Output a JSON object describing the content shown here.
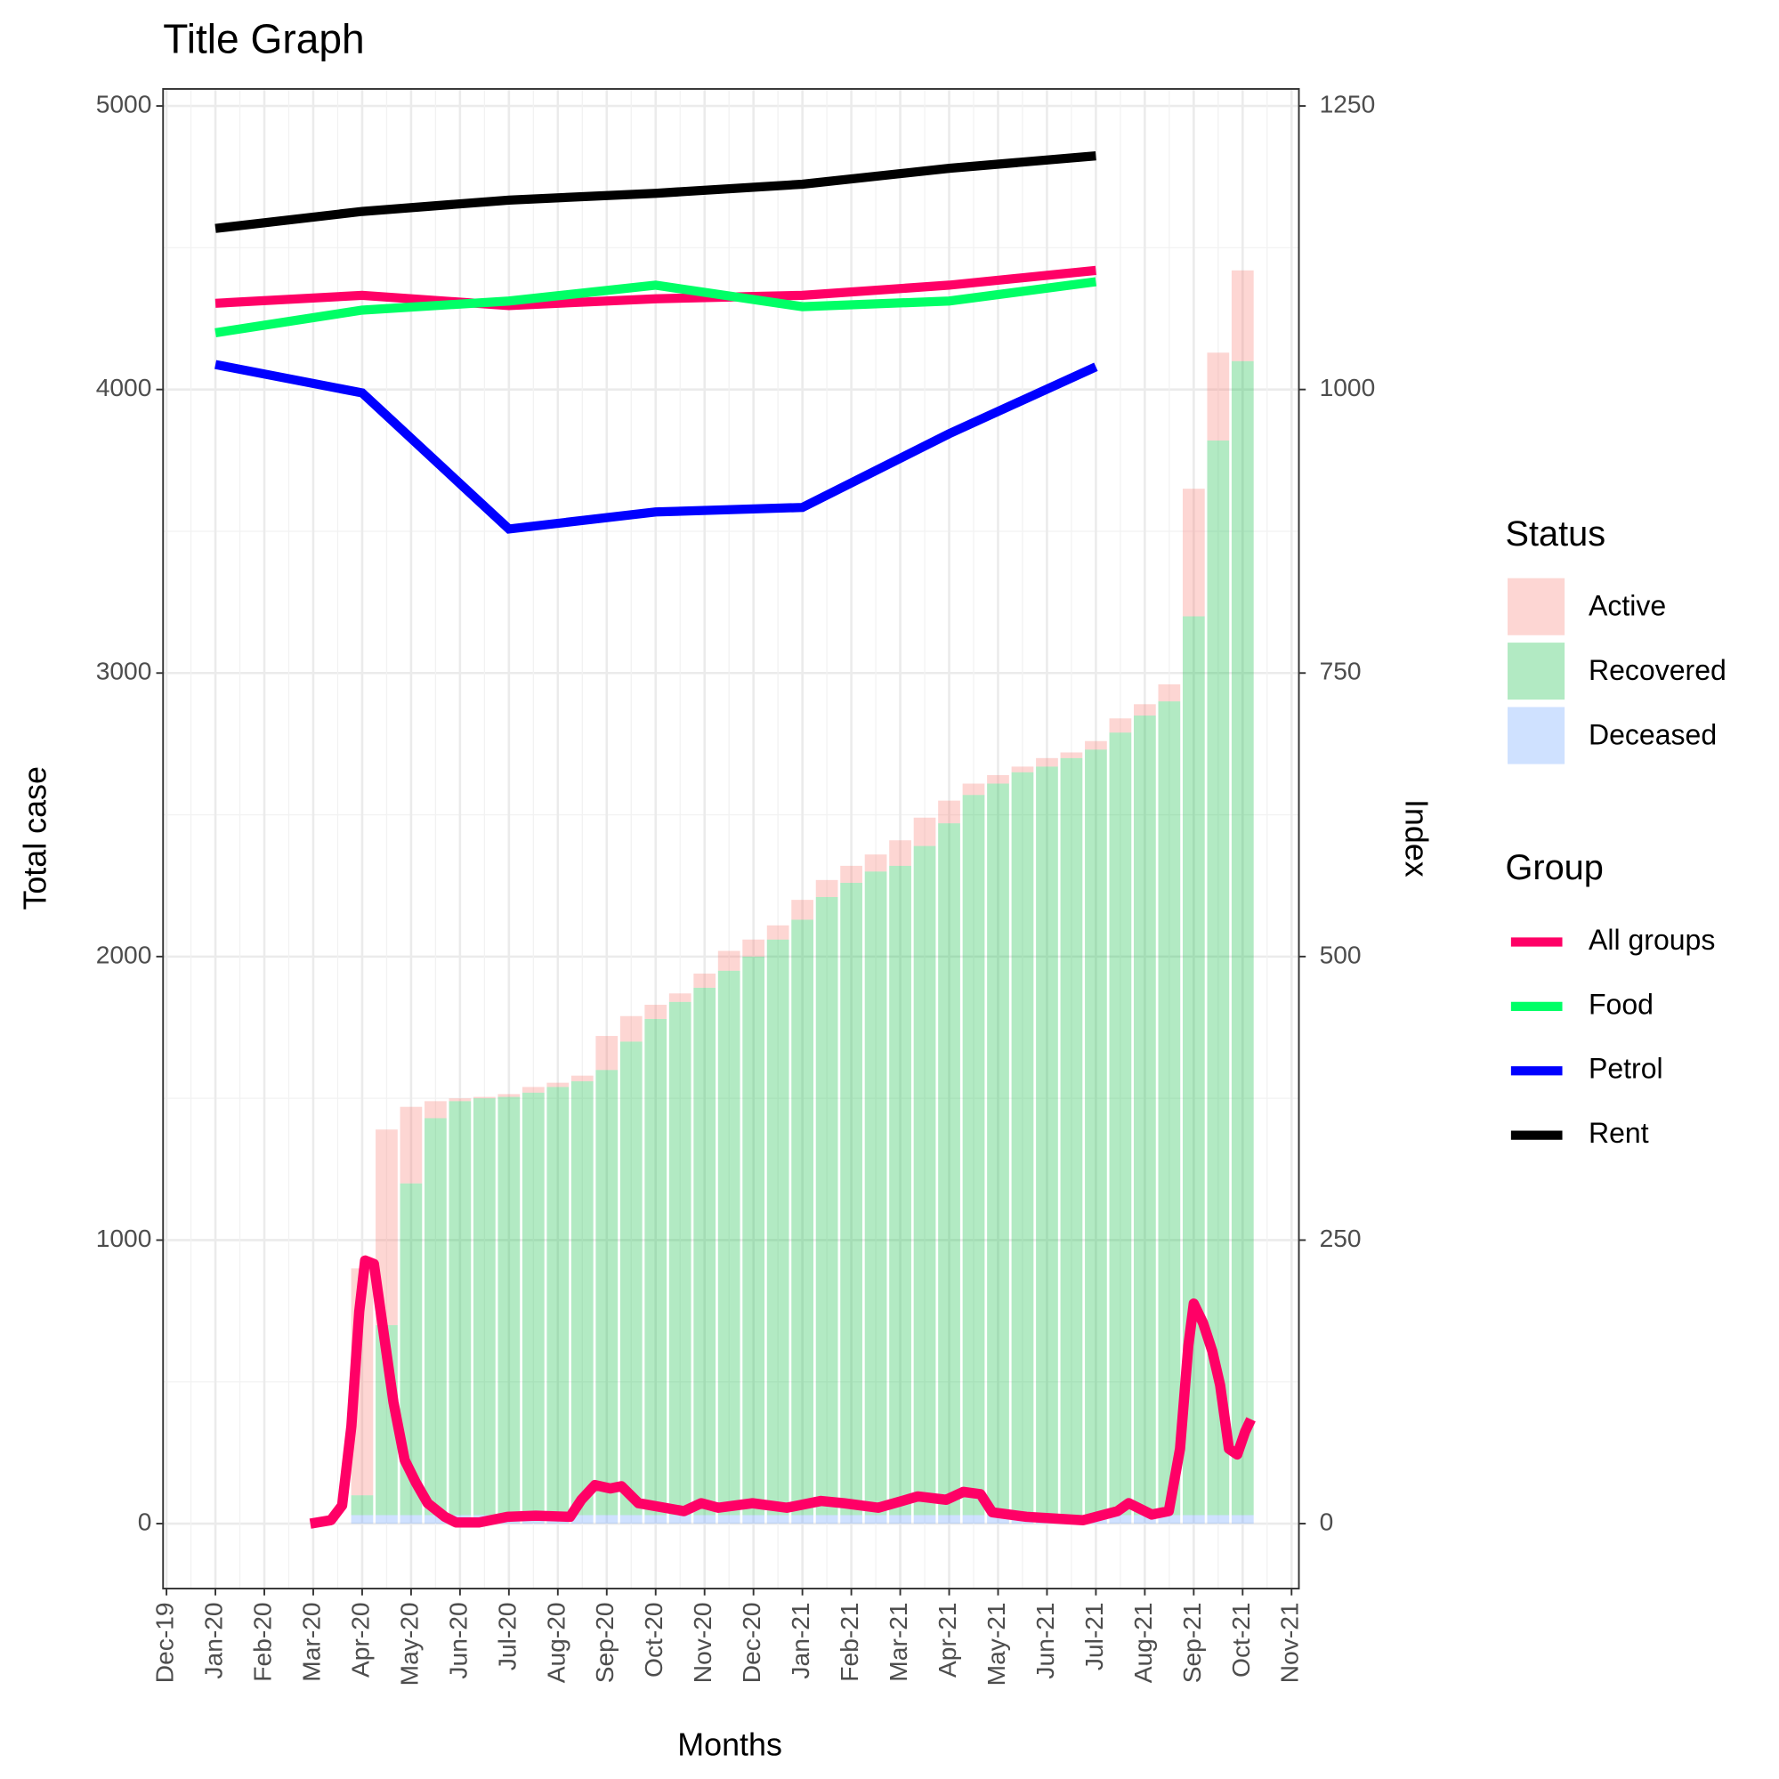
{
  "chart_data": {
    "type": "bar",
    "title": "Title Graph",
    "x_label": "Months",
    "y_label": "Total case",
    "y2_label": "Index",
    "xlim": [
      -0.07,
      23.15
    ],
    "xticks": [
      {
        "value": 0,
        "label": "Dec-19"
      },
      {
        "value": 1,
        "label": "Jan-20"
      },
      {
        "value": 2,
        "label": "Feb-20"
      },
      {
        "value": 3,
        "label": "Mar-20"
      },
      {
        "value": 4,
        "label": "Apr-20"
      },
      {
        "value": 5,
        "label": "May-20"
      },
      {
        "value": 6,
        "label": "Jun-20"
      },
      {
        "value": 7,
        "label": "Jul-20"
      },
      {
        "value": 8,
        "label": "Aug-20"
      },
      {
        "value": 9,
        "label": "Sep-20"
      },
      {
        "value": 10,
        "label": "Oct-20"
      },
      {
        "value": 11,
        "label": "Nov-20"
      },
      {
        "value": 12,
        "label": "Dec-20"
      },
      {
        "value": 13,
        "label": "Jan-21"
      },
      {
        "value": 14,
        "label": "Feb-21"
      },
      {
        "value": 15,
        "label": "Mar-21"
      },
      {
        "value": 16,
        "label": "Apr-21"
      },
      {
        "value": 17,
        "label": "May-21"
      },
      {
        "value": 18,
        "label": "Jun-21"
      },
      {
        "value": 19,
        "label": "Jul-21"
      },
      {
        "value": 20,
        "label": "Aug-21"
      },
      {
        "value": 21,
        "label": "Sep-21"
      },
      {
        "value": 22,
        "label": "Oct-21"
      },
      {
        "value": 23,
        "label": "Nov-21"
      }
    ],
    "ylim": [
      -229,
      5060
    ],
    "yticks": [
      0,
      1000,
      2000,
      3000,
      4000,
      5000
    ],
    "y2lim": [
      -57.25,
      1265
    ],
    "y2ticks": [
      0,
      250,
      500,
      750,
      1000,
      1250
    ],
    "grid": true,
    "bar_width": 0.45,
    "status_title": "Status",
    "group_title": "Group",
    "x": [
      4,
      4.5,
      5,
      5.5,
      6,
      6.5,
      7,
      7.5,
      8,
      8.5,
      9,
      9.5,
      10,
      10.5,
      11,
      11.5,
      12,
      12.5,
      13,
      13.5,
      14,
      14.5,
      15,
      15.5,
      16,
      16.5,
      17,
      17.5,
      18,
      18.5,
      19,
      19.5,
      20,
      20.5,
      21,
      21.5,
      22
    ],
    "series": [
      {
        "name": "Active",
        "color": "#F8766D",
        "values": [
          800,
          690,
          270,
          60,
          10,
          5,
          10,
          20,
          15,
          20,
          120,
          90,
          50,
          30,
          50,
          70,
          60,
          50,
          70,
          60,
          60,
          60,
          90,
          100,
          80,
          40,
          30,
          20,
          30,
          20,
          30,
          50,
          40,
          60,
          450,
          310,
          320
        ]
      },
      {
        "name": "Recovered",
        "color": "#00BA38",
        "values": [
          70,
          670,
          1170,
          1400,
          1460,
          1470,
          1475,
          1490,
          1510,
          1530,
          1570,
          1670,
          1750,
          1810,
          1860,
          1920,
          1970,
          2030,
          2100,
          2180,
          2230,
          2270,
          2290,
          2360,
          2440,
          2540,
          2580,
          2620,
          2640,
          2670,
          2700,
          2760,
          2820,
          2870,
          3170,
          3790,
          4070
        ]
      },
      {
        "name": "Deceased",
        "color": "#619CFF",
        "values": [
          30,
          30,
          30,
          30,
          30,
          30,
          30,
          30,
          30,
          30,
          30,
          30,
          30,
          30,
          30,
          30,
          30,
          30,
          30,
          30,
          30,
          30,
          30,
          30,
          30,
          30,
          30,
          30,
          30,
          30,
          30,
          30,
          30,
          30,
          30,
          30,
          30
        ]
      }
    ],
    "lines": {
      "x": [
        1,
        4,
        7,
        10,
        13,
        16,
        19
      ],
      "series": [
        {
          "name": "All groups",
          "color": "#FF0066",
          "axis": "y2",
          "values": [
            1076,
            1083,
            1074,
            1080,
            1083,
            1092,
            1105
          ]
        },
        {
          "name": "Food",
          "color": "#00FF66",
          "axis": "y2",
          "values": [
            1050,
            1070,
            1078,
            1092,
            1073,
            1078,
            1095
          ]
        },
        {
          "name": "Petrol",
          "color": "#0000FF",
          "axis": "y2",
          "values": [
            1022,
            997,
            877,
            892,
            896,
            961,
            1020
          ]
        },
        {
          "name": "Rent",
          "color": "#000000",
          "axis": "y2",
          "values": [
            1142,
            1157,
            1167,
            1173,
            1181,
            1195,
            1206
          ]
        }
      ]
    },
    "curve": {
      "color": "#FF0066",
      "axis": "y2",
      "x": [
        2.94,
        3.36,
        3.59,
        3.78,
        3.94,
        4.06,
        4.24,
        4.41,
        4.64,
        4.87,
        5.1,
        5.34,
        5.69,
        5.92,
        6.39,
        6.97,
        7.55,
        8.25,
        8.48,
        8.76,
        9.07,
        9.3,
        9.65,
        10.58,
        10.93,
        11.28,
        11.98,
        12.68,
        13.38,
        13.85,
        14.55,
        15.36,
        15.94,
        16.29,
        16.64,
        16.88,
        17.58,
        18.74,
        19.44,
        19.67,
        20.14,
        20.49,
        20.72,
        20.89,
        21.0,
        21.19,
        21.38,
        21.54,
        21.72,
        21.89,
        22.05,
        22.17
      ],
      "values": [
        0,
        3,
        16,
        86,
        187,
        232,
        229,
        177,
        107,
        56,
        36,
        18,
        6,
        1,
        1,
        6,
        7,
        6,
        21,
        34,
        31,
        33,
        18,
        11,
        18,
        14,
        18,
        14,
        20,
        18,
        14,
        24,
        21,
        28,
        26,
        10,
        6,
        3,
        11,
        18,
        8,
        11,
        66,
        157,
        194,
        177,
        152,
        122,
        66,
        61,
        81,
        92
      ]
    }
  }
}
